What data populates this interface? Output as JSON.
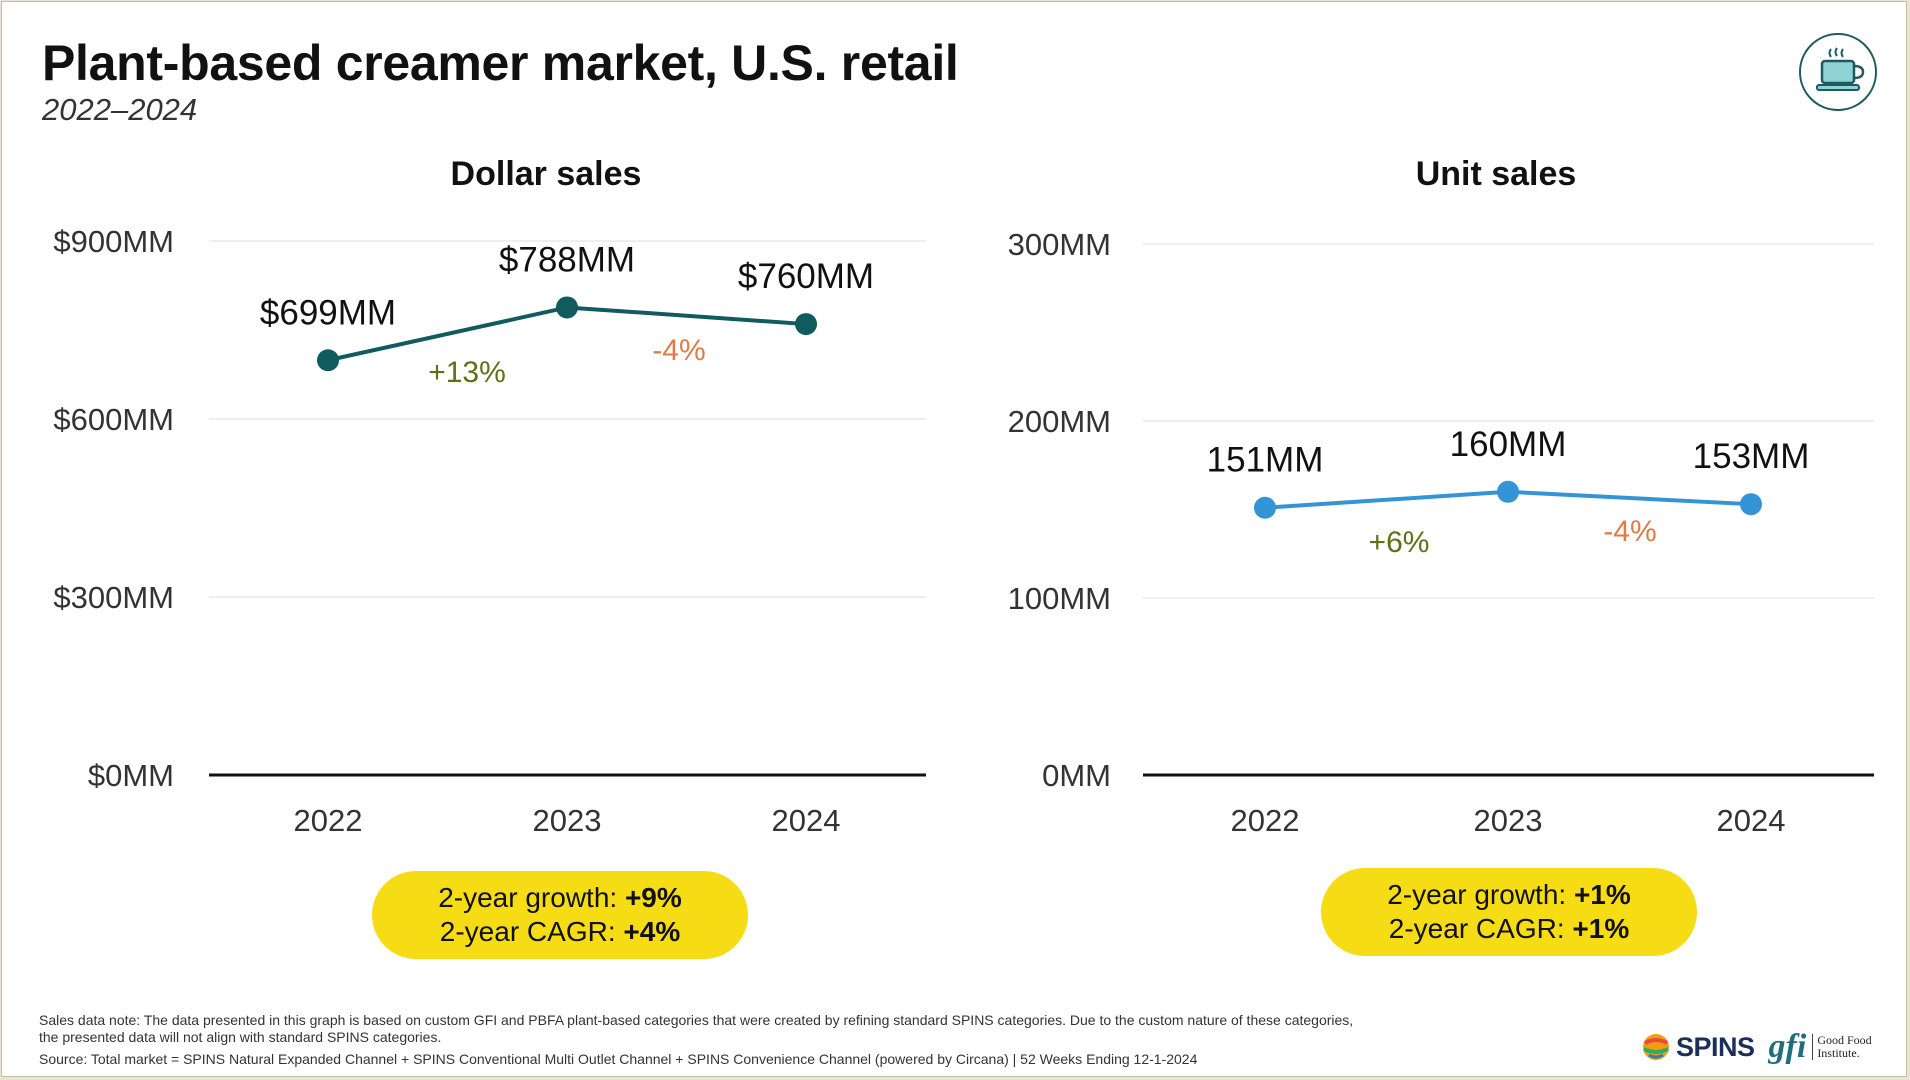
{
  "header": {
    "title": "Plant-based creamer market, U.S. retail",
    "subtitle": "2022–2024",
    "icon": "coffee-cup-icon"
  },
  "chart_data": [
    {
      "type": "line",
      "title": "Dollar sales",
      "categories": [
        "2022",
        "2023",
        "2024"
      ],
      "values": [
        699,
        788,
        760
      ],
      "data_labels": [
        "$699MM",
        "$788MM",
        "$760MM"
      ],
      "growth_labels": [
        "+13%",
        "-4%"
      ],
      "yticks": [
        0,
        300,
        600,
        900
      ],
      "ytick_labels": [
        "$0MM",
        "$300MM",
        "$600MM",
        "$900MM"
      ],
      "ylim": [
        0,
        900
      ],
      "grid": true,
      "line_color": "#0f5b5e",
      "summary": {
        "growth_label": "2-year growth:",
        "growth_value": "+9%",
        "cagr_label": "2-year CAGR:",
        "cagr_value": "+4%"
      }
    },
    {
      "type": "line",
      "title": "Unit sales",
      "categories": [
        "2022",
        "2023",
        "2024"
      ],
      "values": [
        151,
        160,
        153
      ],
      "data_labels": [
        "151MM",
        "160MM",
        "153MM"
      ],
      "growth_labels": [
        "+6%",
        "-4%"
      ],
      "yticks": [
        0,
        100,
        200,
        300
      ],
      "ytick_labels": [
        "0MM",
        "100MM",
        "200MM",
        "300MM"
      ],
      "ylim": [
        0,
        300
      ],
      "grid": true,
      "line_color": "#3394d6",
      "summary": {
        "growth_label": "2-year growth:",
        "growth_value": "+1%",
        "cagr_label": "2-year CAGR:",
        "cagr_value": "+1%"
      }
    }
  ],
  "colors": {
    "positive": "#5c7315",
    "negative": "#e07b45",
    "pill": "#f5dc14"
  },
  "footer": {
    "note_line1": "Sales data note: The data presented in this graph is based on custom GFI and PBFA plant-based categories that were created by refining standard SPINS categories. Due to the custom nature of these categories,",
    "note_line2": "the presented data will not align with standard SPINS categories.",
    "source": "Source: Total market = SPINS Natural Expanded Channel + SPINS Conventional Multi Outlet Channel + SPINS Convenience Channel (powered by Circana) | 52 Weeks Ending 12-1-2024",
    "logo_spins": "SPINS",
    "logo_gfi_mark": "gfi",
    "logo_gfi_line1": "Good Food",
    "logo_gfi_line2": "Institute."
  }
}
